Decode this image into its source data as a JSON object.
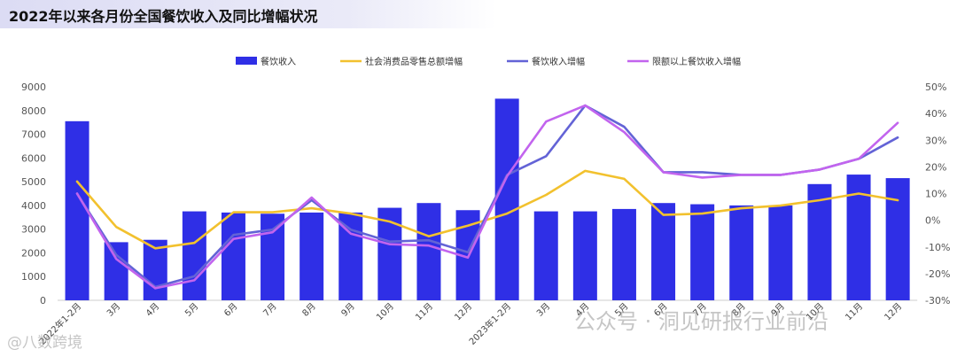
{
  "title": "2022年以来各月份全国餐饮收入及同比增幅状况",
  "watermarks": {
    "left": "@八数跨境",
    "right": "公众号 · 洞见研报行业前沿"
  },
  "colors": {
    "bar": "#2f2fe6",
    "retail": "#f2c12e",
    "catering": "#6363d6",
    "above": "#c264ee"
  },
  "chart_data": {
    "type": "bar",
    "title": "2022年以来各月份全国餐饮收入及同比增幅状况",
    "categories": [
      "2022年1-2月",
      "3月",
      "4月",
      "5月",
      "6月",
      "7月",
      "8月",
      "9月",
      "10月",
      "11月",
      "12月",
      "2023年1-2月",
      "3月",
      "4月",
      "5月",
      "6月",
      "7月",
      "8月",
      "9月",
      "10月",
      "11月",
      "12月"
    ],
    "left_axis": {
      "ylim": [
        0,
        9000
      ],
      "ticks": [
        "0",
        "1000",
        "2000",
        "3000",
        "4000",
        "5000",
        "6000",
        "7000",
        "8000",
        "9000"
      ]
    },
    "right_axis": {
      "ylim": [
        -30,
        50
      ],
      "ticks": [
        "-30%",
        "-20%",
        "-10%",
        "0%",
        "10%",
        "20%",
        "30%",
        "40%",
        "50%"
      ]
    },
    "legend_position": "top",
    "series": [
      {
        "name": "餐饮收入",
        "type": "bar",
        "axis": "left",
        "values": [
          7550,
          2450,
          2550,
          3750,
          3700,
          3650,
          3700,
          3700,
          3900,
          4100,
          3800,
          8500,
          3750,
          3750,
          3850,
          4100,
          4050,
          4000,
          4000,
          4900,
          5300,
          5150
        ]
      },
      {
        "name": "社会消费品零售总额增幅",
        "type": "line",
        "axis": "right",
        "values": [
          14.5,
          -2.5,
          -10.5,
          -8.5,
          3,
          3,
          4.5,
          2.5,
          -0.5,
          -6,
          -2,
          2.5,
          9.5,
          18.5,
          15.5,
          2,
          2.5,
          4.5,
          5.5,
          7.5,
          10,
          7.5
        ]
      },
      {
        "name": "餐饮收入增幅",
        "type": "line",
        "axis": "right",
        "values": [
          10,
          -13,
          -25,
          -21,
          -5.5,
          -3.5,
          7.5,
          -3.5,
          -8,
          -7.5,
          -12,
          17,
          24,
          43,
          35,
          18,
          18,
          17,
          17,
          19,
          23,
          31
        ]
      },
      {
        "name": "限额以上餐饮收入增幅",
        "type": "line",
        "axis": "right",
        "values": [
          10,
          -14.5,
          -25.5,
          -22.5,
          -7,
          -4.5,
          8.5,
          -5,
          -9,
          -9.5,
          -14,
          16.5,
          37,
          43,
          33,
          18,
          16,
          17,
          17,
          19,
          23,
          36.5
        ]
      }
    ]
  }
}
